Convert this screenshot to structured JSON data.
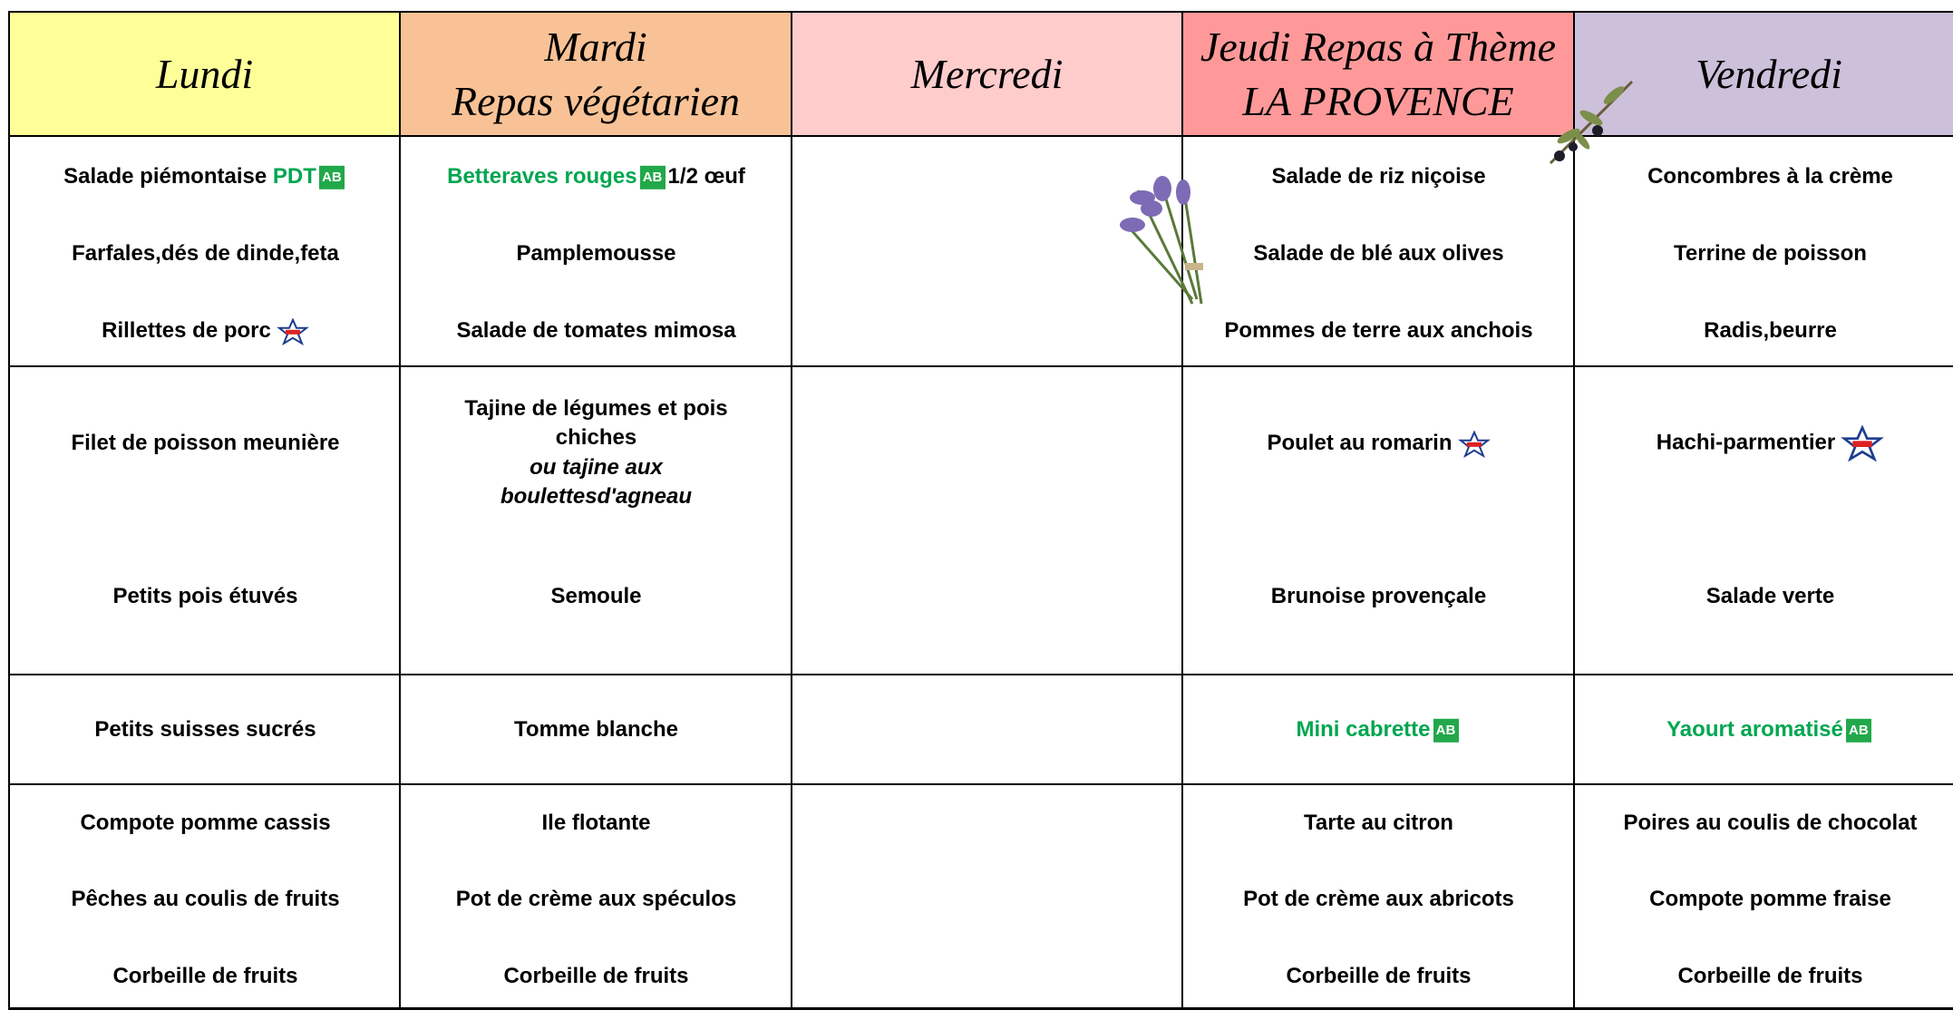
{
  "headers": [
    [
      "Lundi"
    ],
    [
      "Mardi",
      "Repas végétarien"
    ],
    [
      "Mercredi"
    ],
    [
      "Jeudi Repas à Thème",
      "LA PROVENCE"
    ],
    [
      "Vendredi"
    ]
  ],
  "menu": {
    "entrees": [
      [
        [
          "Salade piémontaise",
          "PDT"
        ],
        "Farfales,dés de dinde,feta",
        "Rillettes de porc"
      ],
      [
        [
          "Betteraves rouges",
          "1/2 œuf"
        ],
        "Pamplemousse",
        "Salade de tomates mimosa"
      ],
      [],
      [
        "Salade de riz niçoise",
        "Salade de blé aux olives",
        "Pommes de terre aux anchois"
      ],
      [
        "Concombres à la crème",
        "Terrine de poisson",
        "Radis,beurre"
      ]
    ],
    "plats": [
      [
        "Filet de poisson meunière",
        "Petits pois étuvés"
      ],
      [
        [
          "Tajine de légumes et pois chiches",
          "ou tajine aux boulettesd'agneau"
        ],
        "Semoule"
      ],
      [],
      [
        "Poulet au romarin",
        "Brunoise provençale"
      ],
      [
        "Hachi-parmentier",
        "Salade verte"
      ]
    ],
    "fromages": [
      "Petits suisses sucrés",
      "Tomme blanche",
      null,
      "Mini cabrette",
      "Yaourt aromatisé"
    ],
    "desserts": [
      [
        "Compote pomme cassis",
        "Pêches au coulis de fruits",
        "Corbeille de fruits"
      ],
      [
        "Ile flotante",
        "Pot de crème aux spéculos",
        "Corbeille de fruits"
      ],
      [],
      [
        "Tarte au citron",
        "Pot de crème aux abricots",
        "Corbeille de fruits"
      ],
      [
        "Poires au coulis de chocolat",
        "Compote pomme fraise",
        "Corbeille de fruits"
      ]
    ]
  }
}
